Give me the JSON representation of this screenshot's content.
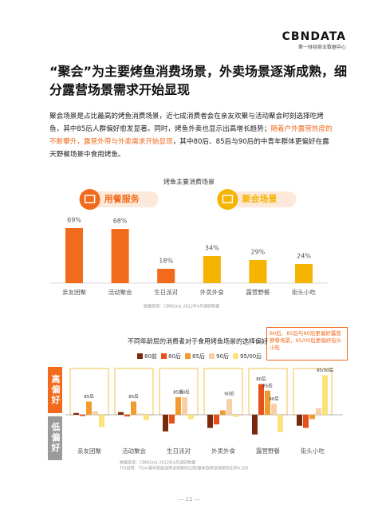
{
  "header": {
    "logo": "CBNDATA",
    "logo_sub": "第一财经商业数据中心"
  },
  "title": "“聚会”为主要烤鱼消费场景，外卖场景逐渐成熟，细分露营场景需求开始显现",
  "body": {
    "text_before": "聚会场景是占比最高的烤鱼消费场景，近七成消费者会在亲友欢聚与活动聚会时刻选择吃烤鱼，其中85后人群偏好愈发显著。同时，烤鱼外卖也显示出高增长趋势；",
    "highlight": "随着户外露营热度的不断攀升，露营外带与外卖需求开始显现",
    "text_after": "，其中80后、85后与90后的中青年群体更偏好在露天野餐场景中食用烤鱼。"
  },
  "chart_data": [
    {
      "type": "bar",
      "title": "烤鱼主要消费场景",
      "categories": [
        "亲友团聚",
        "活动聚会",
        "生日派对",
        "外卖外食",
        "露营野餐",
        "街头小吃"
      ],
      "values": [
        69,
        68,
        18,
        34,
        29,
        24
      ],
      "value_labels": [
        "69%",
        "68%",
        "18%",
        "34%",
        "29%",
        "24%"
      ],
      "groups": [
        {
          "name": "用餐服务",
          "start": 0,
          "end": 2,
          "color": "#F26A1B"
        },
        {
          "name": "聚会场景",
          "start": 3,
          "end": 5,
          "color": "#F5B400"
        }
      ],
      "source": [
        "数据来源：CBNData 2022年4月调研数据"
      ]
    },
    {
      "type": "grouped-bar",
      "title": "不同年龄层的消费者对于食用烤鱼场景的选择偏好",
      "categories": [
        "亲友团聚",
        "活动聚会",
        "生日派对",
        "外卖外食",
        "露营野餐",
        "街头小吃"
      ],
      "series": [
        {
          "name": "80前",
          "color": "#7A2A0C",
          "values": [
            4,
            6,
            -38,
            -30,
            -45,
            -25
          ]
        },
        {
          "name": "80后",
          "color": "#E8501A",
          "values": [
            -3,
            -4,
            -20,
            -22,
            70,
            -30
          ]
        },
        {
          "name": "85后",
          "color": "#F29A2E",
          "values": [
            30,
            30,
            40,
            10,
            55,
            -10
          ]
        },
        {
          "name": "90后",
          "color": "#F9CFA8",
          "values": [
            8,
            3,
            40,
            36,
            25,
            15
          ]
        },
        {
          "name": "95/00后",
          "color": "#FBE37A",
          "values": [
            -28,
            -12,
            -10,
            -5,
            -40,
            90
          ]
        }
      ],
      "positive_label": "高偏好",
      "negative_label": "低偏好",
      "annotation": "80后、85后与90后更偏好露营野餐场景，95/00后更偏好街头小吃",
      "highlights": [
        {
          "category": 0,
          "series": 2,
          "label": "85后"
        },
        {
          "category": 1,
          "series": 2,
          "label": "85后"
        },
        {
          "category": 2,
          "series": 2,
          "label": "85后"
        },
        {
          "category": 2,
          "series": 3,
          "label": "90后"
        },
        {
          "category": 3,
          "series": 3,
          "label": "90后"
        },
        {
          "category": 4,
          "series": 1,
          "label": "80后"
        },
        {
          "category": 4,
          "series": 2,
          "label": "85后"
        },
        {
          "category": 4,
          "series": 3,
          "label": "90后"
        },
        {
          "category": 5,
          "series": 4,
          "label": "95/00后"
        }
      ],
      "source": [
        "数据来源：CBNData 2022年4月调研数据",
        "TGI说明：TGI=某年龄层选择该场景的比例/整体选择该场景的比例×100"
      ]
    }
  ],
  "page_number": "— 11 —"
}
